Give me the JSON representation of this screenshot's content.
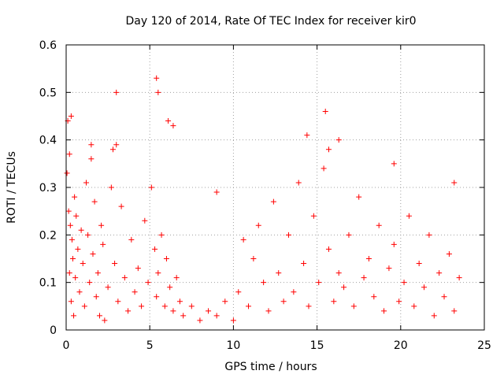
{
  "chart_data": {
    "type": "scatter",
    "title": "Day 120 of 2014, Rate Of TEC Index for receiver kir0",
    "xlabel": "GPS time / hours",
    "ylabel": "ROTI / TECUs",
    "xlim": [
      0,
      25
    ],
    "ylim": [
      0,
      0.6
    ],
    "xticks": [
      "0",
      "5",
      "10",
      "15",
      "20",
      "25"
    ],
    "yticks": [
      "0",
      "0.1",
      "0.2",
      "0.3",
      "0.4",
      "0.5",
      "0.6"
    ],
    "grid": true,
    "marker": "plus",
    "color": "#ff0000",
    "series": [
      {
        "name": "ROTI",
        "note": "dense scatter; representative sampled points",
        "x": [
          0.05,
          0.1,
          0.15,
          0.2,
          0.25,
          0.3,
          0.35,
          0.4,
          0.45,
          0.5,
          0.55,
          0.6,
          0.7,
          0.8,
          0.9,
          1.0,
          1.1,
          1.2,
          1.3,
          1.4,
          1.5,
          1.6,
          1.7,
          1.8,
          1.9,
          2.0,
          2.1,
          2.2,
          2.3,
          2.5,
          2.7,
          2.9,
          3.0,
          3.1,
          3.3,
          3.5,
          3.7,
          3.9,
          4.1,
          4.3,
          4.5,
          4.7,
          4.9,
          5.1,
          5.3,
          5.4,
          5.5,
          5.7,
          5.9,
          6.0,
          6.2,
          6.4,
          6.6,
          6.8,
          7.0,
          7.5,
          8.0,
          8.5,
          9.0,
          9.5,
          10.0,
          10.3,
          10.6,
          10.9,
          11.2,
          11.5,
          11.8,
          12.1,
          12.4,
          12.7,
          13.0,
          13.3,
          13.6,
          13.9,
          14.2,
          14.5,
          14.8,
          15.1,
          15.4,
          15.7,
          16.0,
          16.3,
          16.6,
          16.9,
          17.2,
          17.5,
          17.8,
          18.1,
          18.4,
          18.7,
          19.0,
          19.3,
          19.6,
          19.9,
          20.2,
          20.5,
          20.8,
          21.1,
          21.4,
          21.7,
          22.0,
          22.3,
          22.6,
          22.9,
          23.2,
          23.5,
          0.2,
          0.3,
          1.5,
          2.8,
          3.0,
          5.4,
          5.5,
          6.1,
          6.4,
          9.0,
          14.4,
          15.5,
          15.7,
          16.3,
          19.6,
          23.2
        ],
        "y": [
          0.33,
          0.44,
          0.25,
          0.12,
          0.22,
          0.06,
          0.19,
          0.15,
          0.03,
          0.28,
          0.11,
          0.24,
          0.17,
          0.08,
          0.21,
          0.14,
          0.05,
          0.31,
          0.2,
          0.1,
          0.36,
          0.16,
          0.27,
          0.07,
          0.12,
          0.03,
          0.22,
          0.18,
          0.02,
          0.09,
          0.3,
          0.14,
          0.39,
          0.06,
          0.26,
          0.11,
          0.04,
          0.19,
          0.08,
          0.13,
          0.05,
          0.23,
          0.1,
          0.3,
          0.17,
          0.07,
          0.12,
          0.2,
          0.05,
          0.15,
          0.09,
          0.04,
          0.11,
          0.06,
          0.03,
          0.05,
          0.02,
          0.04,
          0.03,
          0.06,
          0.02,
          0.08,
          0.19,
          0.05,
          0.15,
          0.22,
          0.1,
          0.04,
          0.27,
          0.12,
          0.06,
          0.2,
          0.08,
          0.31,
          0.14,
          0.05,
          0.24,
          0.1,
          0.34,
          0.17,
          0.06,
          0.12,
          0.09,
          0.2,
          0.05,
          0.28,
          0.11,
          0.15,
          0.07,
          0.22,
          0.04,
          0.13,
          0.18,
          0.06,
          0.1,
          0.24,
          0.05,
          0.14,
          0.09,
          0.2,
          0.03,
          0.12,
          0.07,
          0.16,
          0.04,
          0.11,
          0.37,
          0.45,
          0.39,
          0.38,
          0.5,
          0.53,
          0.5,
          0.44,
          0.43,
          0.29,
          0.41,
          0.46,
          0.38,
          0.4,
          0.35,
          0.31
        ]
      }
    ]
  }
}
